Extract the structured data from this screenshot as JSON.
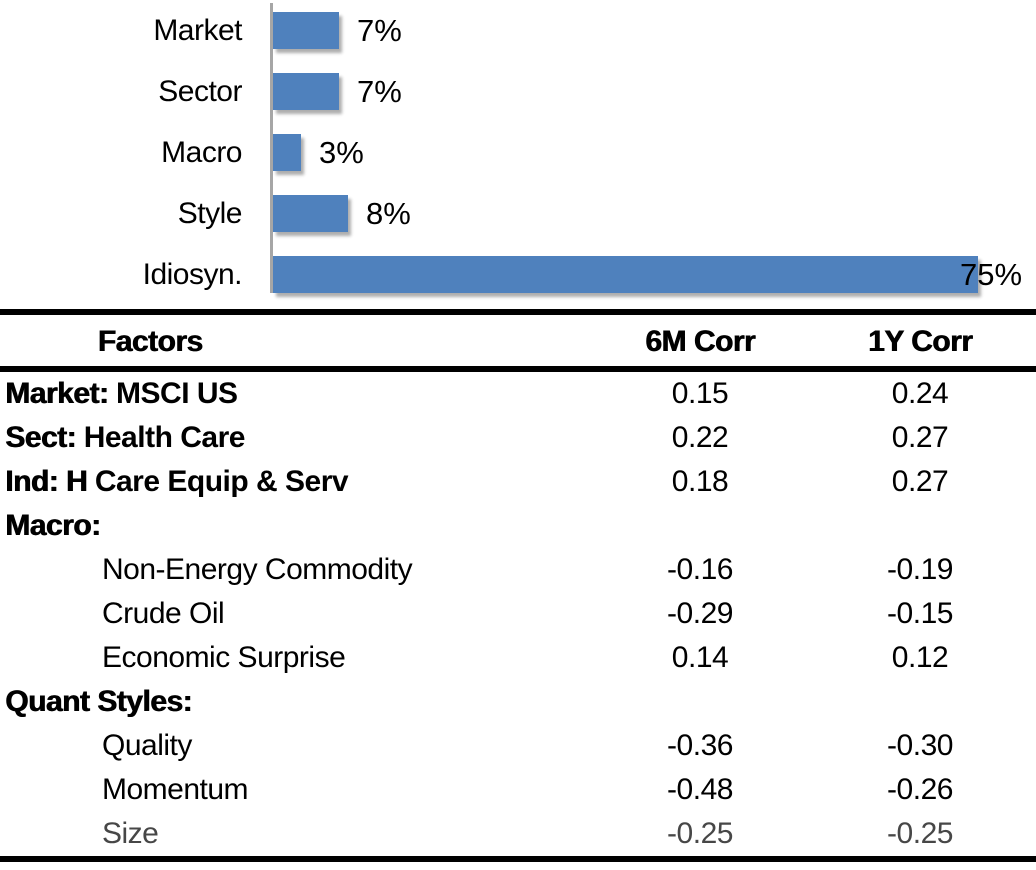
{
  "chart_data": {
    "type": "bar",
    "orientation": "horizontal",
    "title": "",
    "categories": [
      "Market",
      "Sector",
      "Macro",
      "Style",
      "Idiosyn."
    ],
    "values": [
      7,
      7,
      3,
      8,
      75
    ],
    "value_labels": [
      "7%",
      "7%",
      "3%",
      "8%",
      "75%"
    ],
    "xlim": [
      0,
      80
    ],
    "grid": false,
    "legend": false,
    "bar_color": "#4F81BD",
    "axis_color": "#A6A6A6"
  },
  "table": {
    "headers": {
      "factors": "Factors",
      "corr_6m": "6M Corr",
      "corr_1y": "1Y Corr"
    },
    "rows": [
      {
        "prefix": "Market:",
        "name": "MSCI US",
        "indent": false,
        "strong_name": true,
        "muted": false,
        "c6m": "0.15",
        "c1y": "0.24"
      },
      {
        "prefix": "Sect:",
        "name": "Health Care",
        "indent": false,
        "strong_name": true,
        "muted": false,
        "c6m": "0.22",
        "c1y": "0.27"
      },
      {
        "prefix": "Ind: H",
        "name": "Care Equip & Serv",
        "indent": false,
        "strong_name": true,
        "muted": false,
        "c6m": "0.18",
        "c1y": "0.27"
      },
      {
        "prefix": "Macro:",
        "name": "",
        "indent": false,
        "strong_name": false,
        "muted": false,
        "c6m": "",
        "c1y": ""
      },
      {
        "prefix": "",
        "name": "Non-Energy Commodity",
        "indent": true,
        "strong_name": false,
        "muted": false,
        "c6m": "-0.16",
        "c1y": "-0.19"
      },
      {
        "prefix": "",
        "name": "Crude Oil",
        "indent": true,
        "strong_name": false,
        "muted": false,
        "c6m": "-0.29",
        "c1y": "-0.15"
      },
      {
        "prefix": "",
        "name": "Economic Surprise",
        "indent": true,
        "strong_name": false,
        "muted": false,
        "c6m": "0.14",
        "c1y": "0.12"
      },
      {
        "prefix": "Quant Styles:",
        "name": "",
        "indent": false,
        "strong_name": false,
        "muted": false,
        "c6m": "",
        "c1y": ""
      },
      {
        "prefix": "",
        "name": "Quality",
        "indent": true,
        "strong_name": false,
        "muted": false,
        "c6m": "-0.36",
        "c1y": "-0.30"
      },
      {
        "prefix": "",
        "name": "Momentum",
        "indent": true,
        "strong_name": false,
        "muted": false,
        "c6m": "-0.48",
        "c1y": "-0.26"
      },
      {
        "prefix": "",
        "name": "Size",
        "indent": true,
        "strong_name": false,
        "muted": true,
        "c6m": "-0.25",
        "c1y": "-0.25"
      }
    ]
  }
}
